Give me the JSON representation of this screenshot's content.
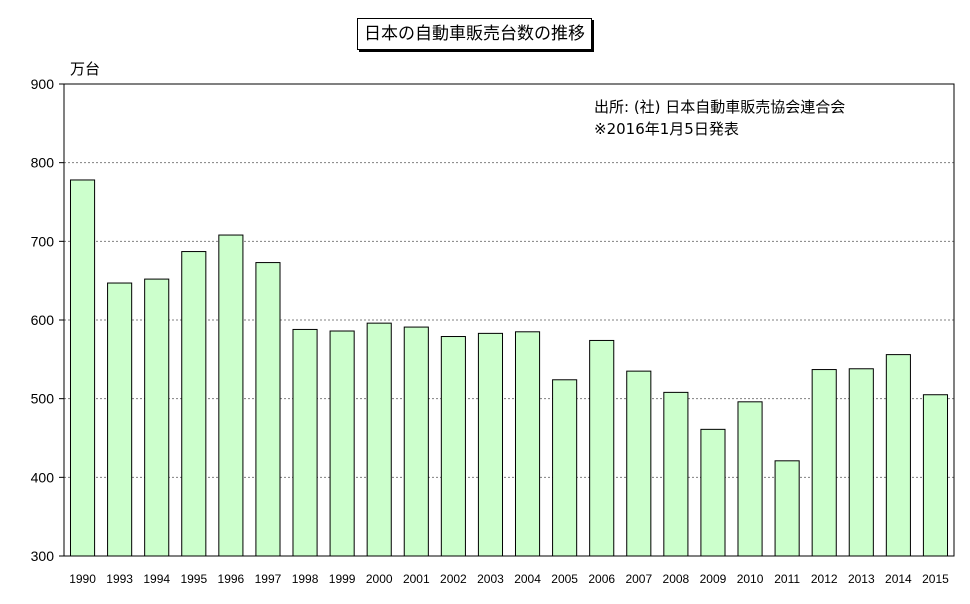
{
  "chart_data": {
    "type": "bar",
    "title": "日本の自動車販売台数の推移",
    "ylabel": "万台",
    "ylim": [
      300,
      900
    ],
    "yticks": [
      300,
      400,
      500,
      600,
      700,
      800,
      900
    ],
    "grid": true,
    "categories": [
      "1990",
      "1993",
      "1994",
      "1995",
      "1996",
      "1997",
      "1998",
      "1999",
      "2000",
      "2001",
      "2002",
      "2003",
      "2004",
      "2005",
      "2006",
      "2007",
      "2008",
      "2009",
      "2010",
      "2011",
      "2012",
      "2013",
      "2014",
      "2015"
    ],
    "values": [
      778,
      647,
      652,
      687,
      708,
      673,
      588,
      586,
      596,
      591,
      579,
      583,
      585,
      524,
      574,
      535,
      508,
      461,
      496,
      421,
      537,
      538,
      556,
      505
    ],
    "annotations": [
      "出所: (社) 日本自動車販売協会連合会",
      "※2016年1月5日発表"
    ],
    "colors": {
      "bar_fill": "#ccffcc",
      "bar_stroke": "#000000",
      "grid": "#808080"
    }
  }
}
